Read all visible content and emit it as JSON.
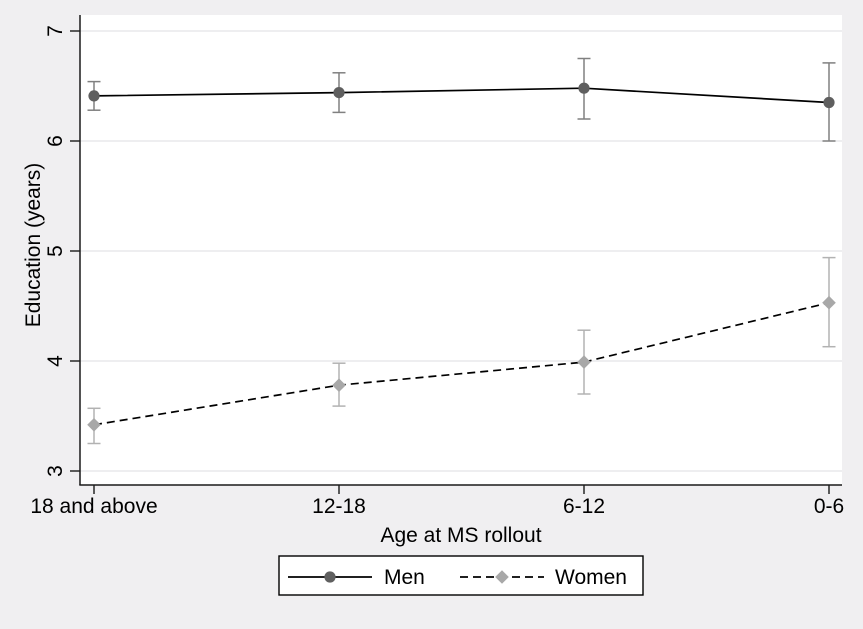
{
  "figure": {
    "background_color": "#f0eff1",
    "plot_background_color": "#ffffff",
    "grid_color": "#e4e3e7",
    "axis_color": "#1a1a1a",
    "text_color": "#000000",
    "legend_border_color": "#000000"
  },
  "chart_data": {
    "type": "line",
    "categories": [
      "18 and above",
      "12-18",
      "6-12",
      "0-6"
    ],
    "xlabel": "Age at MS rollout",
    "ylabel": "Education (years)",
    "yticks": [
      7,
      6,
      5,
      4,
      3
    ],
    "ylim": [
      2.87,
      7.15
    ],
    "grid": "horizontal",
    "legend_position": "bottom",
    "error_bars": true,
    "series": [
      {
        "name": "Men",
        "marker": "circle",
        "line_style": "solid",
        "line_color": "#000000",
        "marker_color": "#5f5f5f",
        "error_color": "#808080",
        "values": [
          6.41,
          6.44,
          6.48,
          6.35
        ],
        "ci_low": [
          6.28,
          6.26,
          6.2,
          6.0
        ],
        "ci_high": [
          6.54,
          6.62,
          6.75,
          6.71
        ]
      },
      {
        "name": "Women",
        "marker": "diamond",
        "line_style": "dashed",
        "line_color": "#000000",
        "marker_color": "#a8a8a8",
        "error_color": "#b2b2b2",
        "values": [
          3.42,
          3.78,
          3.99,
          4.53
        ],
        "ci_low": [
          3.25,
          3.59,
          3.7,
          4.13
        ],
        "ci_high": [
          3.57,
          3.98,
          4.28,
          4.94
        ]
      }
    ]
  }
}
